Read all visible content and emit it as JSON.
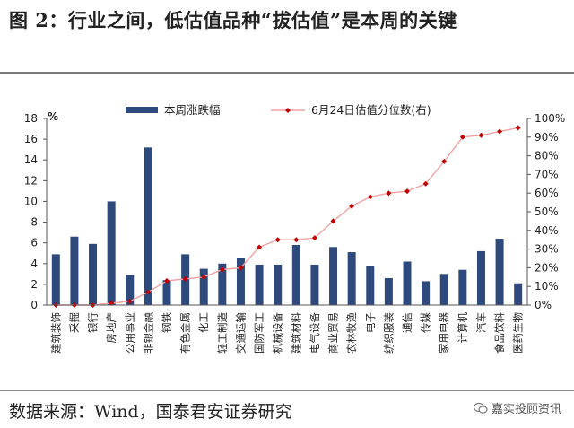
{
  "figure": {
    "title": "图 2：行业之间，低估值品种“拔估值”是本周的关键",
    "source": "数据来源：Wind，国泰君安证券研究",
    "watermark": "嘉实投顾资讯"
  },
  "colors": {
    "bar": "#2e4a7d",
    "line": "#f2a2a2",
    "marker": "#c00000"
  },
  "chart_data": {
    "type": "bar",
    "categories": [
      "建筑装饰",
      "采掘",
      "银行",
      "房地产",
      "公用事业",
      "非银金融",
      "钢铁",
      "有色金属",
      "化工",
      "轻工制造",
      "交通运输",
      "国防军工",
      "机械设备",
      "建筑材料",
      "电气设备",
      "商业贸易",
      "农林牧渔",
      "电子",
      "纺织服装",
      "通信",
      "传媒",
      "家用电器",
      "计算机",
      "汽车",
      "食品饮料",
      "医药生物"
    ],
    "series": [
      {
        "name": "本周涨跌幅",
        "type": "bar",
        "axis": "left",
        "values": [
          4.9,
          6.6,
          5.9,
          10.0,
          2.9,
          15.2,
          2.4,
          4.9,
          3.5,
          4.0,
          4.5,
          3.9,
          3.9,
          5.8,
          3.9,
          5.6,
          5.1,
          3.8,
          2.6,
          4.2,
          2.3,
          3.0,
          3.4,
          5.2,
          6.4,
          2.1
        ]
      },
      {
        "name": "6月24日估值分位数(右)",
        "type": "line",
        "axis": "right",
        "values": [
          0.0,
          0.0,
          0.0,
          1.0,
          2.0,
          7.0,
          13.0,
          14.0,
          15.0,
          19.0,
          20.0,
          31.0,
          35.0,
          35.0,
          36.0,
          45.0,
          53.0,
          58.0,
          60.0,
          61.0,
          65.0,
          77.0,
          90.0,
          91.0,
          93.0,
          95.0
        ]
      }
    ],
    "y_left": {
      "unit": "%",
      "min": 0,
      "max": 18,
      "ticks": [
        0,
        2,
        4,
        6,
        8,
        10,
        12,
        14,
        16,
        18
      ]
    },
    "y_right": {
      "min": 0,
      "max": 100,
      "ticks": [
        "0%",
        "10%",
        "20%",
        "30%",
        "40%",
        "50%",
        "60%",
        "70%",
        "80%",
        "90%",
        "100%"
      ]
    },
    "legend_position": "top"
  }
}
